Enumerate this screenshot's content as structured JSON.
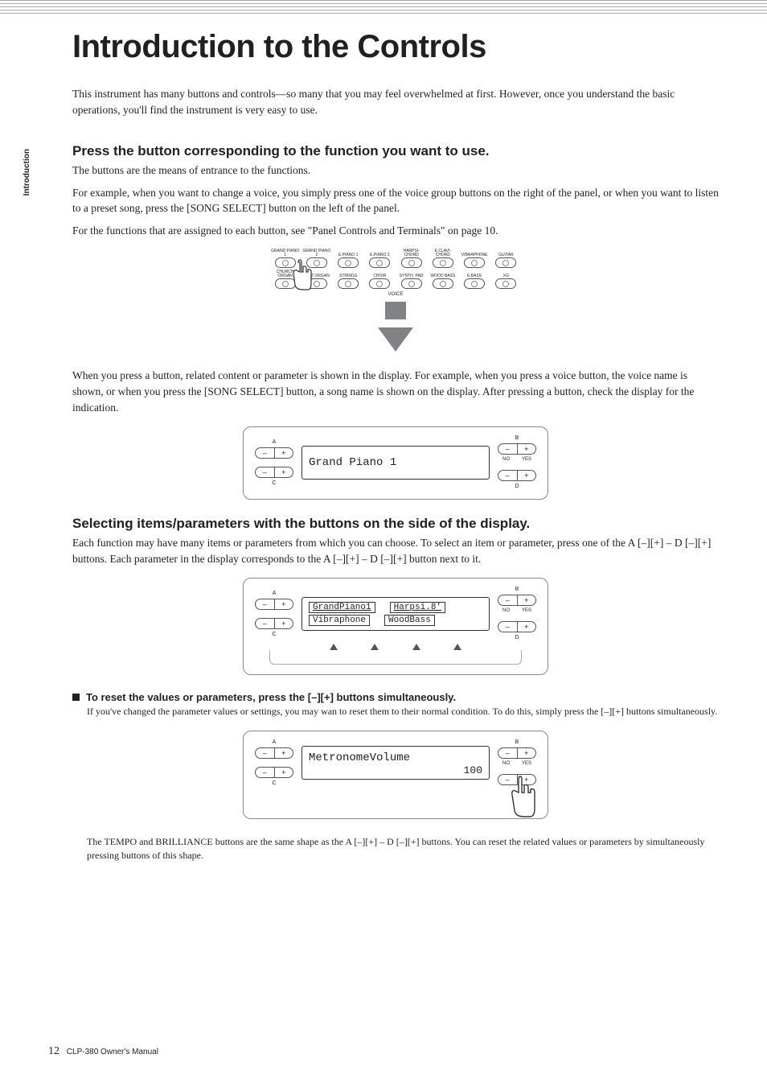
{
  "sideTab": "Introduction",
  "pageTitle": "Introduction to the Controls",
  "introText": "This instrument has many buttons and controls—so many that you may feel overwhelmed at first. However, once you understand the basic operations, you'll find the instrument is very easy to use.",
  "section1": {
    "heading": "Press the button corresponding to the function you want to use.",
    "p1": "The buttons are the means of entrance to the functions.",
    "p2": "For example, when you want to change a voice, you simply press one of the voice group buttons on the right of the panel, or when you want to listen to a preset song, press the [SONG SELECT] button on the left of the panel.",
    "p3": "For the functions that are assigned to each button, see \"Panel Controls and Terminals\" on page 10.",
    "afterFig": "When you press a button, related content or parameter is shown in the display. For example, when you press a voice button, the voice name is shown, or when you press the [SONG SELECT] button, a song name is shown on the display. After pressing a button, check the display for the indication."
  },
  "voicePanel": {
    "row1": [
      "GRAND PIANO 1",
      "GRAND PIANO 2",
      "E.PIANO 1",
      "E.PIANO 2",
      "HARPSI-CHORD",
      "E.CLAVI-CHORD",
      "VIBRAPHONE",
      "GUITAR"
    ],
    "row2": [
      "CHURCH ORGAN",
      "JAZZ ORGAN",
      "STRINGS",
      "CHOIR",
      "SYNTH. PAD",
      "WOOD BASS",
      "E.BASS",
      "XG"
    ],
    "caption": "VOICE"
  },
  "display1": {
    "A": "A",
    "B": "B",
    "C": "C",
    "D": "D",
    "NO": "NO",
    "YES": "YES",
    "lcdText": "Grand Piano 1"
  },
  "section2": {
    "heading": "Selecting items/parameters with the buttons on the side of the display.",
    "p1": "Each function may have many items or parameters from which you can choose. To select an item or parameter, press one of the A [–][+] – D [–][+] buttons. Each parameter in the display corresponds to the A [–][+] – D [–][+] button next to it."
  },
  "display2": {
    "cells": [
      "GrandPiano1",
      "Harpsi.8'",
      "Vibraphone",
      "WoodBass"
    ]
  },
  "section3": {
    "heading": "To reset the values or parameters, press the [–][+] buttons simultaneously.",
    "p1": "If you've changed the parameter values or settings, you may wan to reset them to their normal condition. To do this, simply press the [–][+] buttons simultaneously."
  },
  "display3": {
    "label": "MetronomeVolume",
    "value": "100"
  },
  "tailText": "The TEMPO and BRILLIANCE buttons are the same shape as the A [–][+] – D [–][+] buttons. You can reset the related values or parameters by simultaneously pressing buttons of this shape.",
  "footer": {
    "pageNum": "12",
    "manual": "CLP-380 Owner's Manual"
  },
  "colors": {
    "topLine": "#a7a9ac",
    "arrow": "#808285",
    "text": "#231f20"
  }
}
